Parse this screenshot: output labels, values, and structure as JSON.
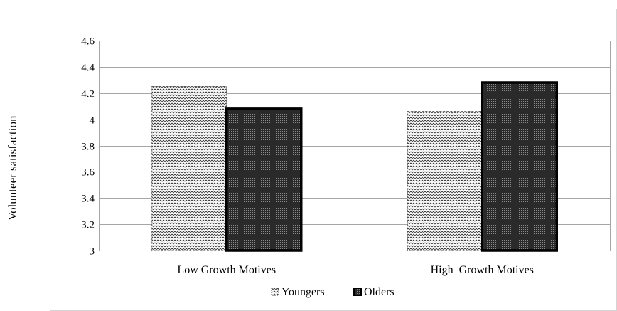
{
  "chart_data": {
    "type": "bar",
    "categories": [
      "Low Growth Motives",
      "High  Growth Motives"
    ],
    "series": [
      {
        "name": "Youngers",
        "values": [
          4.25,
          4.06
        ],
        "fill": "hatch"
      },
      {
        "name": "Olders",
        "values": [
          4.08,
          4.28
        ],
        "fill": "dense-dots"
      }
    ],
    "ylabel": "Volunteer satisfaction",
    "xlabel": "",
    "ylim": [
      3,
      4.6
    ],
    "yticks": [
      "3",
      "3.2",
      "3.4",
      "3.6",
      "3.8",
      "4",
      "4.2",
      "4.4",
      "4.6"
    ],
    "grid": true,
    "legend": "bottom-center"
  }
}
